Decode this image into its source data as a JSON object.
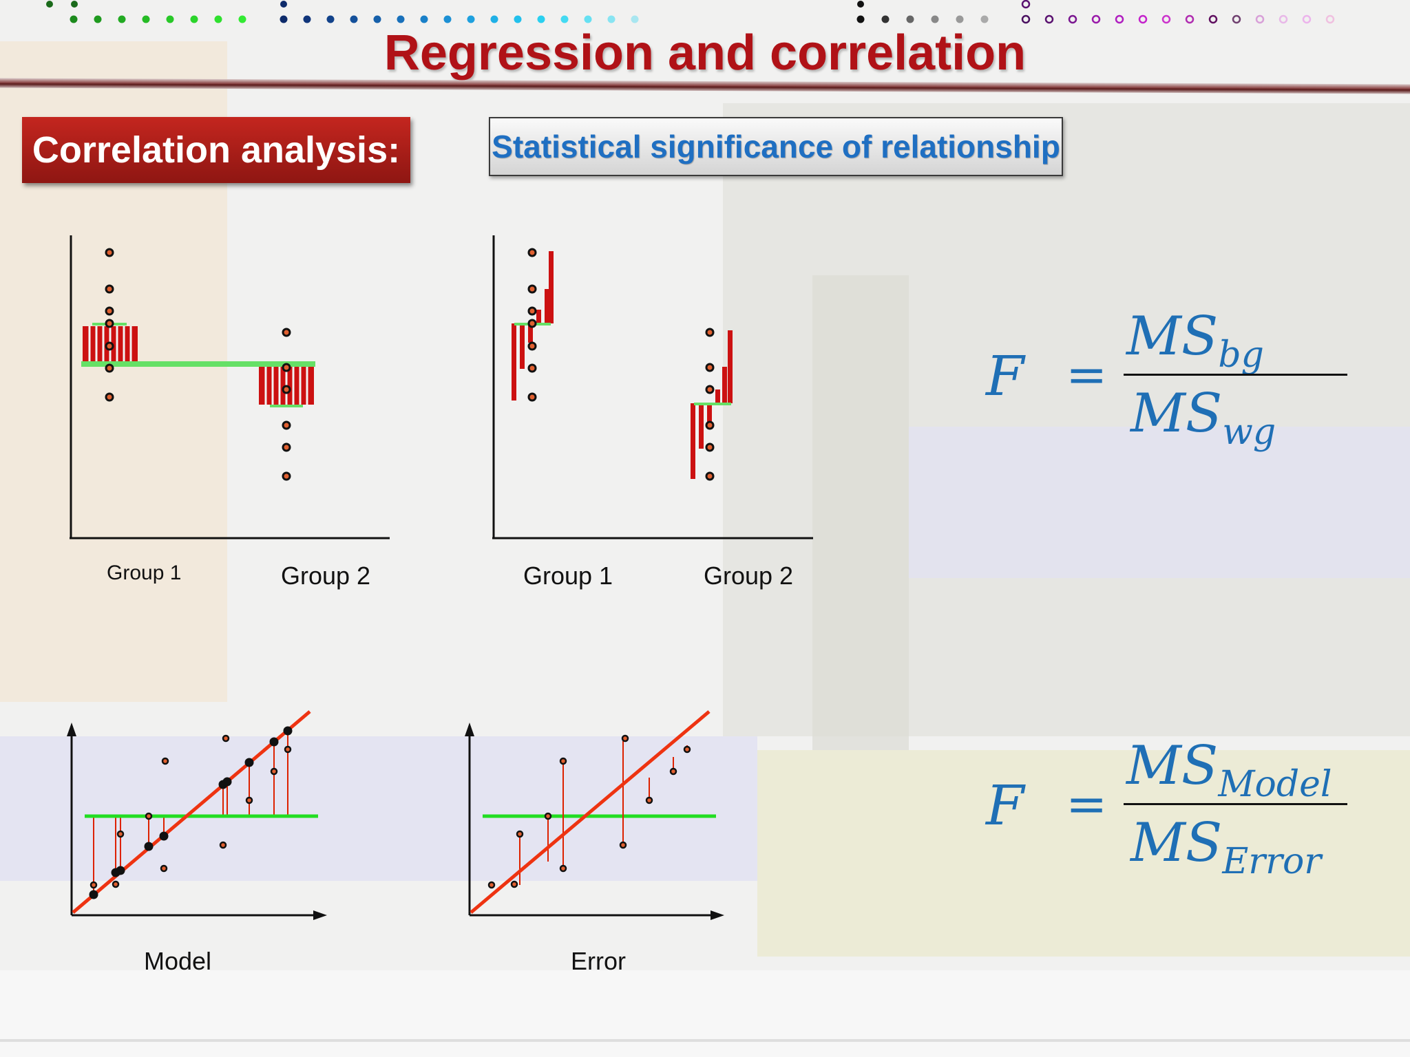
{
  "slide": {
    "title": "Regression and correlation",
    "section_label": "Correlation analysis:",
    "subtitle": "Statistical significance of relationship"
  },
  "colors": {
    "title": "#b01217",
    "section_box": "#a81c17",
    "subtitle_text": "#1f6fc2",
    "bar_red": "#cc1111",
    "mean_green": "#66e066",
    "regression_line": "#ee3311",
    "residual_line": "#dd2200",
    "equation_blue": "#1f6fb5"
  },
  "diagrams": {
    "between_groups": {
      "group1_label": "Group 1",
      "group2_label": "Group 2"
    },
    "within_groups": {
      "group1_label": "Group 1",
      "group2_label": "Group 2"
    },
    "model": {
      "label": "Model"
    },
    "error": {
      "label": "Error"
    }
  },
  "equations": {
    "anova": {
      "lhs": "F",
      "equals": "=",
      "num_main": "MS",
      "num_sub": "bg",
      "den_main": "MS",
      "den_sub": "wg"
    },
    "regression": {
      "lhs": "F",
      "equals": "=",
      "num_main": "MS",
      "num_sub": "Model",
      "den_main": "MS",
      "den_sub": "Error"
    }
  },
  "icons": [
    "dot-row-decoration",
    "scatter-diagram",
    "residual-line"
  ]
}
